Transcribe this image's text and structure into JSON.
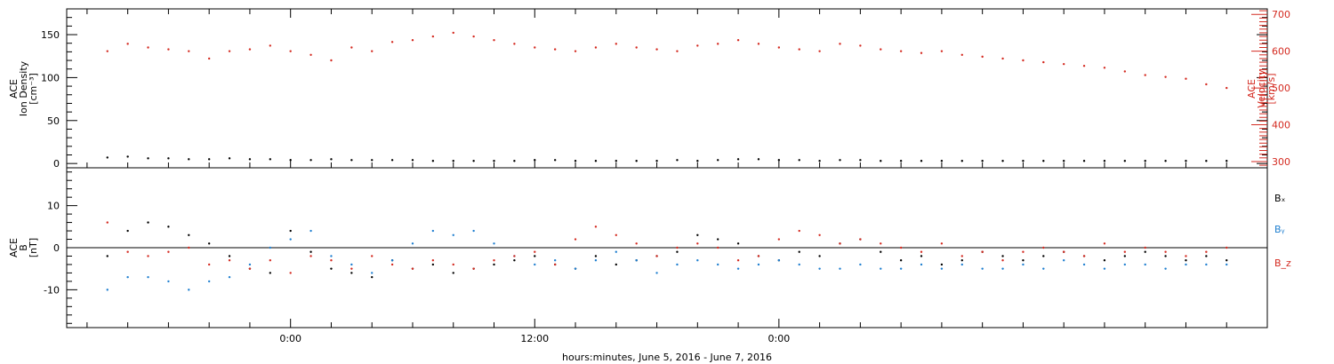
{
  "chart_data": [
    {
      "type": "scatter",
      "panel": "top",
      "ylabel_lines": [
        "ACE",
        "Ion Density",
        "[cm⁻³]"
      ],
      "y_ticks": [
        0,
        50,
        100,
        150
      ],
      "ylim": [
        -5,
        180
      ],
      "ylabel_right_lines": [
        "ACE",
        "Velocity",
        "[km/s]"
      ],
      "y2_ticks": [
        300,
        400,
        500,
        600,
        700
      ],
      "y2lim": [
        283,
        715
      ],
      "series": [
        {
          "axis": "left",
          "color": "#000000",
          "x": [
            -9,
            -8,
            -7,
            -6,
            -5,
            -4,
            -3,
            -2,
            -1,
            0,
            1,
            2,
            3,
            4,
            5,
            6,
            7,
            8,
            9,
            10,
            11,
            12,
            13,
            14,
            15,
            16,
            17,
            18,
            19,
            20,
            21,
            22,
            23,
            24,
            25,
            26,
            27,
            28,
            29,
            30,
            31,
            32,
            33,
            34,
            35,
            36,
            37,
            38,
            39,
            40,
            41,
            42,
            43,
            44,
            45,
            46
          ],
          "y": [
            7,
            8,
            6,
            6,
            5,
            5,
            6,
            5,
            5,
            4,
            4,
            5,
            4,
            4,
            4,
            4,
            3,
            3,
            3,
            3,
            3,
            4,
            4,
            3,
            3,
            3,
            3,
            3,
            4,
            3,
            4,
            5,
            5,
            4,
            4,
            3,
            4,
            4,
            3,
            3,
            3,
            3,
            3,
            3,
            3,
            3,
            3,
            3,
            3,
            3,
            3,
            3,
            3,
            3,
            3,
            3
          ]
        },
        {
          "axis": "right",
          "color": "#d42a20",
          "x": [
            -9,
            -8,
            -7,
            -6,
            -5,
            -4,
            -3,
            -2,
            -1,
            0,
            1,
            2,
            3,
            4,
            5,
            6,
            7,
            8,
            9,
            10,
            11,
            12,
            13,
            14,
            15,
            16,
            17,
            18,
            19,
            20,
            21,
            22,
            23,
            24,
            25,
            26,
            27,
            28,
            29,
            30,
            31,
            32,
            33,
            34,
            35,
            36,
            37,
            38,
            39,
            40,
            41,
            42,
            43,
            44,
            45,
            46
          ],
          "y": [
            600,
            620,
            610,
            605,
            600,
            580,
            600,
            605,
            615,
            600,
            590,
            575,
            610,
            600,
            625,
            630,
            640,
            650,
            640,
            630,
            620,
            610,
            605,
            600,
            610,
            620,
            610,
            605,
            600,
            615,
            620,
            630,
            620,
            610,
            605,
            600,
            620,
            615,
            605,
            600,
            595,
            600,
            590,
            585,
            580,
            575,
            570,
            565,
            560,
            555,
            545,
            535,
            530,
            525,
            510,
            500
          ]
        }
      ]
    },
    {
      "type": "scatter",
      "panel": "bottom",
      "ylabel_lines": [
        "ACE",
        "B",
        "[nT]"
      ],
      "y_ticks": [
        -10,
        0,
        10
      ],
      "ylim": [
        -19,
        19
      ],
      "legend": [
        "Bₓ",
        "Bᵧ",
        "B_z"
      ],
      "series": [
        {
          "name": "Bₓ",
          "color": "#000000",
          "x": [
            -9,
            -8,
            -7,
            -6,
            -5,
            -4,
            -3,
            -2,
            -1,
            0,
            1,
            2,
            3,
            4,
            5,
            6,
            7,
            8,
            9,
            10,
            11,
            12,
            13,
            14,
            15,
            16,
            17,
            18,
            19,
            20,
            21,
            22,
            23,
            24,
            25,
            26,
            27,
            28,
            29,
            30,
            31,
            32,
            33,
            34,
            35,
            36,
            37,
            38,
            39,
            40,
            41,
            42,
            43,
            44,
            45,
            46
          ],
          "y": [
            -2,
            4,
            6,
            5,
            3,
            1,
            -2,
            -5,
            -6,
            4,
            -1,
            -5,
            -6,
            -7,
            -3,
            -5,
            -4,
            -6,
            -5,
            -4,
            -3,
            -2,
            -4,
            -5,
            -2,
            -4,
            -3,
            -2,
            -1,
            3,
            2,
            1,
            -2,
            -3,
            -1,
            -2,
            1,
            2,
            -1,
            -3,
            -2,
            -4,
            -3,
            -1,
            -2,
            -3,
            -2,
            -1,
            -2,
            -3,
            -2,
            -1,
            -2,
            -3,
            -2,
            -3
          ]
        },
        {
          "name": "Bᵧ",
          "color": "#1f7fd0",
          "x": [
            -9,
            -8,
            -7,
            -6,
            -5,
            -4,
            -3,
            -2,
            -1,
            0,
            1,
            2,
            3,
            4,
            5,
            6,
            7,
            8,
            9,
            10,
            11,
            12,
            13,
            14,
            15,
            16,
            17,
            18,
            19,
            20,
            21,
            22,
            23,
            24,
            25,
            26,
            27,
            28,
            29,
            30,
            31,
            32,
            33,
            34,
            35,
            36,
            37,
            38,
            39,
            40,
            41,
            42,
            43,
            44,
            45,
            46
          ],
          "y": [
            -10,
            -7,
            -7,
            -8,
            -10,
            -8,
            -7,
            -4,
            0,
            2,
            4,
            -2,
            -4,
            -6,
            -3,
            1,
            4,
            3,
            4,
            1,
            -2,
            -4,
            -3,
            -5,
            -3,
            -1,
            -3,
            -6,
            -4,
            -3,
            -4,
            -5,
            -4,
            -3,
            -4,
            -5,
            -5,
            -4,
            -5,
            -5,
            -4,
            -5,
            -4,
            -5,
            -5,
            -4,
            -5,
            -3,
            -4,
            -5,
            -4,
            -4,
            -5,
            -4,
            -4,
            -4
          ]
        },
        {
          "name": "B_z",
          "color": "#d42a20",
          "x": [
            -9,
            -8,
            -7,
            -6,
            -5,
            -4,
            -3,
            -2,
            -1,
            0,
            1,
            2,
            3,
            4,
            5,
            6,
            7,
            8,
            9,
            10,
            11,
            12,
            13,
            14,
            15,
            16,
            17,
            18,
            19,
            20,
            21,
            22,
            23,
            24,
            25,
            26,
            27,
            28,
            29,
            30,
            31,
            32,
            33,
            34,
            35,
            36,
            37,
            38,
            39,
            40,
            41,
            42,
            43,
            44,
            45,
            46
          ],
          "y": [
            6,
            -1,
            -2,
            -1,
            0,
            -4,
            -3,
            -5,
            -3,
            -6,
            -2,
            -3,
            -5,
            -2,
            -4,
            -5,
            -3,
            -4,
            -5,
            -3,
            -2,
            -1,
            -4,
            2,
            5,
            3,
            1,
            -2,
            0,
            1,
            0,
            -3,
            -2,
            2,
            4,
            3,
            1,
            2,
            1,
            0,
            -1,
            1,
            -2,
            -1,
            -3,
            -1,
            0,
            -1,
            -2,
            1,
            -1,
            0,
            -1,
            -2,
            -1,
            0
          ]
        }
      ]
    }
  ],
  "x_axis": {
    "title": "hours:minutes, June  5, 2016 - June  7, 2016",
    "xlim": [
      -11,
      48
    ],
    "major_ticks": [
      0,
      12,
      24
    ],
    "major_labels": [
      "0:00",
      "12:00",
      "0:00"
    ]
  }
}
